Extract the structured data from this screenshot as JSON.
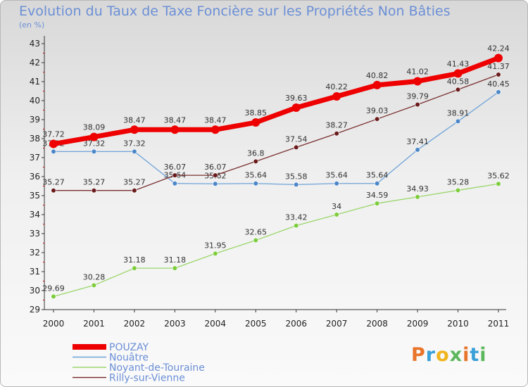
{
  "header": {
    "title": "Evolution du Taux de Taxe Foncière sur les Propriétés Non Bâties",
    "subtitle": "(en %)"
  },
  "brand": {
    "letters": [
      "P",
      "r",
      "o",
      "x",
      "i",
      "t",
      "i"
    ],
    "colors": [
      "#e8742a",
      "#3aa0d8",
      "#f0b51e",
      "#5cb85c",
      "#e8742a",
      "#3aa0d8",
      "#5cb85c"
    ]
  },
  "chart_data": {
    "type": "line",
    "x": [
      "2000",
      "2001",
      "2002",
      "2003",
      "2004",
      "2005",
      "2006",
      "2007",
      "2008",
      "2009",
      "2010",
      "2011"
    ],
    "ylim": [
      29,
      43
    ],
    "yticks": [
      "29",
      "30",
      "31",
      "32",
      "33",
      "34",
      "35",
      "36",
      "37",
      "38",
      "39",
      "40",
      "41",
      "42",
      "43"
    ],
    "grid": false,
    "legend_position": "bottom-left",
    "series": [
      {
        "name": "POUZAY",
        "color": "#ee0000",
        "marker": "#ee0000",
        "width": 7,
        "values": [
          37.72,
          38.09,
          38.47,
          38.47,
          38.47,
          38.85,
          39.63,
          40.22,
          40.82,
          41.02,
          41.43,
          42.24
        ],
        "labels": [
          "37.72",
          "38.09",
          "38.47",
          "38.47",
          "38.47",
          "38.85",
          "39.63",
          "40.22",
          "40.82",
          "41.02",
          "41.43",
          "42.24"
        ]
      },
      {
        "name": "Nouâtre",
        "color": "#6ea3d8",
        "marker": "#4a86c8",
        "width": 1.3,
        "values": [
          37.32,
          37.32,
          37.32,
          35.64,
          35.62,
          35.64,
          35.58,
          35.64,
          35.64,
          37.41,
          38.91,
          40.45
        ],
        "labels": [
          "37.32",
          "37.32",
          "37.32",
          "35.64",
          "35.62",
          "35.64",
          "35.58",
          "35.64",
          "35.64",
          "37.41",
          "38.91",
          "40.45"
        ]
      },
      {
        "name": "Noyant-de-Touraine",
        "color": "#9ad66a",
        "marker": "#7ccc3c",
        "width": 1.3,
        "values": [
          29.69,
          30.28,
          31.18,
          31.18,
          31.95,
          32.65,
          33.42,
          34.0,
          34.59,
          34.93,
          35.28,
          35.62
        ],
        "labels": [
          "29.69",
          "30.28",
          "31.18",
          "31.18",
          "31.95",
          "32.65",
          "33.42",
          "34",
          "34.59",
          "34.93",
          "35.28",
          "35.62"
        ]
      },
      {
        "name": "Rilly-sur-Vienne",
        "color": "#7a3030",
        "marker": "#6a1a1a",
        "width": 1.3,
        "values": [
          35.27,
          35.27,
          35.27,
          36.07,
          36.07,
          36.8,
          37.54,
          38.27,
          39.03,
          39.79,
          40.58,
          41.37
        ],
        "labels": [
          "35.27",
          "35.27",
          "35.27",
          "36.07",
          "36.07",
          "36.8",
          "37.54",
          "38.27",
          "39.03",
          "39.79",
          "40.58",
          "41.37"
        ]
      }
    ]
  }
}
